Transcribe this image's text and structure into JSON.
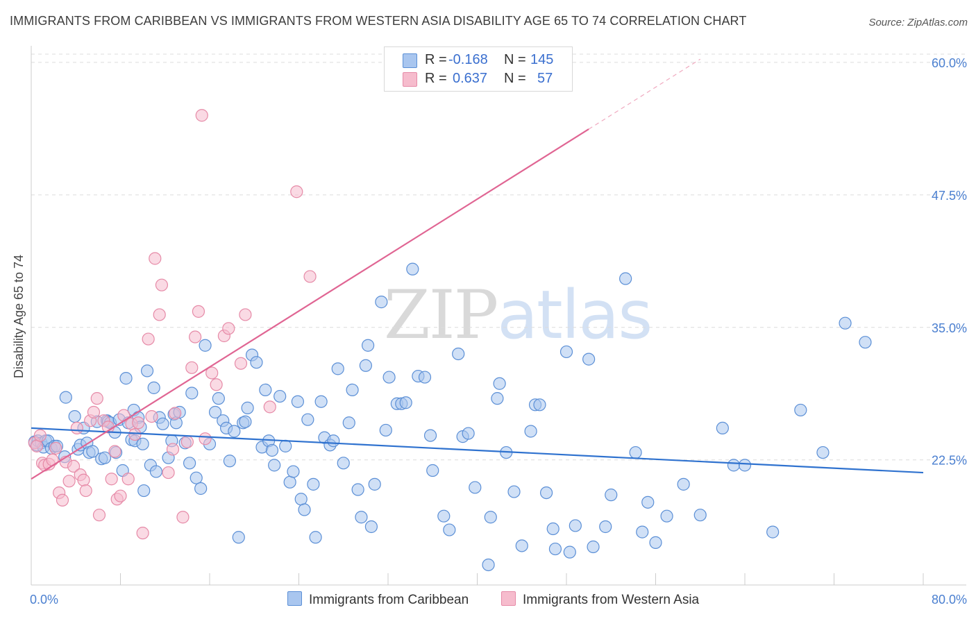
{
  "title": "IMMIGRANTS FROM CARIBBEAN VS IMMIGRANTS FROM WESTERN ASIA DISABILITY AGE 65 TO 74 CORRELATION CHART",
  "source": "Source: ZipAtlas.com",
  "watermark": {
    "zip": "ZIP",
    "atlas": "atlas"
  },
  "legend": {
    "rows": [
      {
        "r_label": "R =",
        "r_value": "-0.168",
        "n_label": "N =",
        "n_value": "145"
      },
      {
        "r_label": "R =",
        "r_value": "0.637",
        "n_label": "N =",
        "n_value": "57"
      }
    ]
  },
  "bottom_legend": [
    "Immigrants from Caribbean",
    "Immigrants from Western Asia"
  ],
  "colors": {
    "blue_fill": "#a9c6ef",
    "blue_stroke": "#5b8fd6",
    "blue_line": "#2f72cf",
    "pink_fill": "#f6bccd",
    "pink_stroke": "#e68aa7",
    "pink_line": "#e06593",
    "axis_label": "#4a7fd0",
    "grid": "#dcdcdc"
  },
  "chart_data": {
    "type": "scatter",
    "title": "IMMIGRANTS FROM CARIBBEAN VS IMMIGRANTS FROM WESTERN ASIA DISABILITY AGE 65 TO 74 CORRELATION CHART",
    "xlabel": "",
    "ylabel": "Disability Age 65 to 74",
    "xlim": [
      0,
      80
    ],
    "ylim": [
      10.7,
      61.3
    ],
    "x_tick_labels": [
      "0.0%",
      "80.0%"
    ],
    "y_ticks": [
      22.5,
      35.0,
      47.5,
      60.0
    ],
    "y_tick_labels": [
      "22.5%",
      "35.0%",
      "47.5%",
      "60.0%"
    ],
    "grid": true,
    "legend_placement": "top-center",
    "series": [
      {
        "name": "Immigrants from Caribbean",
        "color": "#5b8fd6",
        "trend": {
          "x": [
            0,
            80
          ],
          "y": [
            25.5,
            21.3
          ],
          "style": "solid"
        },
        "points": [
          [
            0.3,
            24.2
          ],
          [
            0.5,
            23.9
          ],
          [
            0.6,
            24.3
          ],
          [
            0.9,
            24.1
          ],
          [
            1.1,
            23.7
          ],
          [
            1.3,
            24.3
          ],
          [
            1.5,
            24.3
          ],
          [
            1.8,
            23.6
          ],
          [
            2.1,
            23.8
          ],
          [
            2.3,
            23.8
          ],
          [
            3.0,
            22.8
          ],
          [
            3.1,
            28.4
          ],
          [
            3.9,
            26.6
          ],
          [
            4.2,
            23.5
          ],
          [
            4.4,
            23.9
          ],
          [
            4.7,
            25.5
          ],
          [
            5.0,
            24.1
          ],
          [
            5.2,
            23.2
          ],
          [
            5.5,
            23.3
          ],
          [
            5.9,
            26.1
          ],
          [
            6.3,
            22.6
          ],
          [
            6.6,
            22.7
          ],
          [
            6.8,
            26.2
          ],
          [
            6.9,
            26.1
          ],
          [
            7.1,
            26.0
          ],
          [
            7.5,
            25.1
          ],
          [
            7.6,
            23.2
          ],
          [
            7.9,
            26.3
          ],
          [
            8.2,
            21.5
          ],
          [
            8.5,
            30.2
          ],
          [
            8.7,
            26.0
          ],
          [
            9.0,
            24.4
          ],
          [
            9.2,
            27.2
          ],
          [
            9.3,
            24.3
          ],
          [
            9.6,
            26.5
          ],
          [
            9.8,
            25.6
          ],
          [
            10.0,
            24.0
          ],
          [
            10.1,
            19.6
          ],
          [
            10.4,
            30.9
          ],
          [
            10.7,
            22.0
          ],
          [
            11.0,
            29.3
          ],
          [
            11.2,
            21.4
          ],
          [
            11.5,
            26.5
          ],
          [
            11.8,
            25.9
          ],
          [
            12.3,
            22.7
          ],
          [
            12.6,
            24.3
          ],
          [
            12.8,
            26.8
          ],
          [
            13.0,
            26.0
          ],
          [
            13.3,
            27.0
          ],
          [
            13.8,
            24.1
          ],
          [
            14.2,
            22.2
          ],
          [
            14.4,
            28.8
          ],
          [
            14.8,
            20.8
          ],
          [
            15.2,
            19.8
          ],
          [
            15.6,
            33.3
          ],
          [
            16.0,
            24.0
          ],
          [
            16.5,
            27.0
          ],
          [
            16.8,
            28.3
          ],
          [
            17.2,
            26.2
          ],
          [
            17.5,
            25.5
          ],
          [
            17.8,
            22.4
          ],
          [
            18.2,
            25.2
          ],
          [
            18.6,
            15.2
          ],
          [
            19.0,
            26.0
          ],
          [
            19.2,
            26.1
          ],
          [
            19.4,
            27.4
          ],
          [
            19.8,
            32.4
          ],
          [
            20.2,
            31.7
          ],
          [
            20.7,
            23.7
          ],
          [
            21.0,
            29.1
          ],
          [
            21.3,
            24.3
          ],
          [
            21.6,
            23.4
          ],
          [
            21.8,
            22.0
          ],
          [
            22.3,
            28.5
          ],
          [
            22.8,
            23.8
          ],
          [
            23.2,
            20.4
          ],
          [
            23.5,
            21.4
          ],
          [
            23.9,
            28.0
          ],
          [
            24.2,
            18.8
          ],
          [
            24.5,
            17.8
          ],
          [
            24.8,
            26.3
          ],
          [
            25.3,
            20.2
          ],
          [
            25.5,
            15.2
          ],
          [
            26.0,
            28.0
          ],
          [
            26.3,
            24.6
          ],
          [
            26.8,
            23.9
          ],
          [
            27.1,
            24.3
          ],
          [
            27.5,
            31.1
          ],
          [
            28.0,
            22.2
          ],
          [
            28.5,
            26.0
          ],
          [
            28.8,
            29.1
          ],
          [
            29.3,
            19.7
          ],
          [
            29.6,
            17.1
          ],
          [
            30.0,
            31.4
          ],
          [
            30.2,
            33.3
          ],
          [
            30.5,
            16.2
          ],
          [
            30.8,
            20.2
          ],
          [
            31.4,
            37.4
          ],
          [
            31.8,
            25.3
          ],
          [
            32.1,
            30.3
          ],
          [
            32.8,
            27.8
          ],
          [
            33.2,
            27.8
          ],
          [
            33.6,
            27.9
          ],
          [
            34.2,
            40.5
          ],
          [
            34.7,
            30.4
          ],
          [
            35.3,
            30.3
          ],
          [
            35.8,
            24.8
          ],
          [
            36.0,
            21.5
          ],
          [
            37.0,
            17.2
          ],
          [
            37.5,
            15.9
          ],
          [
            38.3,
            32.5
          ],
          [
            38.7,
            24.7
          ],
          [
            39.2,
            25.0
          ],
          [
            39.8,
            19.9
          ],
          [
            41.0,
            12.6
          ],
          [
            41.2,
            17.1
          ],
          [
            41.8,
            28.3
          ],
          [
            42.0,
            29.7
          ],
          [
            42.6,
            23.2
          ],
          [
            43.3,
            19.5
          ],
          [
            44.0,
            14.4
          ],
          [
            44.8,
            25.2
          ],
          [
            45.2,
            27.7
          ],
          [
            45.6,
            27.7
          ],
          [
            46.2,
            19.4
          ],
          [
            46.8,
            16.0
          ],
          [
            47.0,
            14.1
          ],
          [
            48.0,
            32.7
          ],
          [
            48.3,
            13.8
          ],
          [
            48.8,
            16.3
          ],
          [
            50.0,
            32.0
          ],
          [
            50.4,
            14.3
          ],
          [
            51.5,
            16.2
          ],
          [
            52.0,
            19.2
          ],
          [
            53.3,
            39.6
          ],
          [
            54.2,
            23.2
          ],
          [
            54.8,
            15.7
          ],
          [
            55.3,
            18.5
          ],
          [
            56.0,
            14.7
          ],
          [
            57.0,
            17.2
          ],
          [
            58.5,
            20.2
          ],
          [
            60.0,
            17.3
          ],
          [
            62.0,
            25.5
          ],
          [
            63.0,
            22.0
          ],
          [
            64.0,
            22.0
          ],
          [
            66.5,
            15.7
          ],
          [
            69.0,
            27.2
          ],
          [
            71.0,
            23.2
          ],
          [
            73.0,
            35.4
          ],
          [
            74.8,
            33.6
          ]
        ]
      },
      {
        "name": "Immigrants from Western Asia",
        "color": "#e68aa7",
        "trend": {
          "x": [
            0,
            50
          ],
          "y": [
            20.7,
            53.7
          ],
          "style": "solid",
          "dashed_extension": {
            "x": [
              50,
              60
            ],
            "y": [
              53.7,
              60.3
            ]
          }
        },
        "points": [
          [
            0.3,
            24.1
          ],
          [
            0.5,
            23.8
          ],
          [
            0.8,
            24.8
          ],
          [
            1.0,
            22.2
          ],
          [
            1.2,
            22.0
          ],
          [
            1.6,
            22.1
          ],
          [
            1.9,
            22.5
          ],
          [
            2.2,
            23.6
          ],
          [
            2.5,
            19.4
          ],
          [
            2.8,
            18.7
          ],
          [
            3.1,
            22.3
          ],
          [
            3.4,
            20.5
          ],
          [
            3.8,
            21.9
          ],
          [
            4.1,
            25.5
          ],
          [
            4.4,
            21.1
          ],
          [
            4.7,
            20.6
          ],
          [
            4.9,
            19.6
          ],
          [
            5.3,
            26.2
          ],
          [
            5.6,
            27.0
          ],
          [
            5.9,
            28.3
          ],
          [
            6.1,
            17.3
          ],
          [
            6.5,
            26.2
          ],
          [
            6.9,
            25.6
          ],
          [
            7.2,
            20.7
          ],
          [
            7.5,
            23.3
          ],
          [
            7.7,
            18.8
          ],
          [
            8.0,
            19.1
          ],
          [
            8.3,
            26.7
          ],
          [
            8.7,
            20.7
          ],
          [
            9.0,
            25.9
          ],
          [
            9.3,
            24.9
          ],
          [
            9.6,
            26.0
          ],
          [
            10.0,
            15.6
          ],
          [
            10.5,
            33.9
          ],
          [
            10.8,
            26.6
          ],
          [
            11.1,
            41.5
          ],
          [
            11.5,
            36.2
          ],
          [
            11.7,
            39.0
          ],
          [
            12.3,
            21.3
          ],
          [
            12.7,
            23.5
          ],
          [
            12.9,
            26.9
          ],
          [
            13.6,
            17.1
          ],
          [
            14.0,
            24.2
          ],
          [
            14.4,
            31.2
          ],
          [
            14.7,
            34.1
          ],
          [
            15.0,
            36.5
          ],
          [
            15.3,
            55.0
          ],
          [
            15.6,
            24.5
          ],
          [
            16.2,
            30.7
          ],
          [
            16.6,
            29.6
          ],
          [
            17.3,
            34.2
          ],
          [
            17.7,
            34.9
          ],
          [
            18.8,
            31.6
          ],
          [
            19.2,
            36.2
          ],
          [
            21.4,
            27.5
          ],
          [
            23.8,
            47.8
          ],
          [
            25.0,
            39.8
          ]
        ]
      }
    ]
  }
}
